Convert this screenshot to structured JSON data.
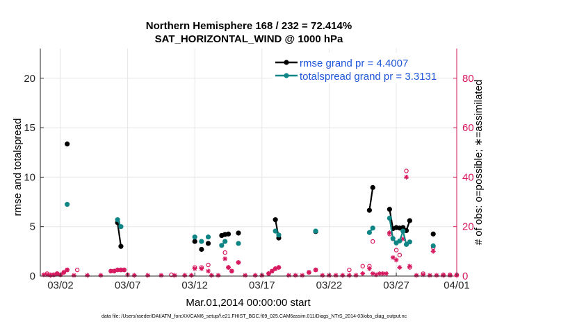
{
  "colors": {
    "rmse": "#000000",
    "spread": "#0f8585",
    "obs": "#d6175e",
    "grid": "#e6e6e6",
    "axis": "#262626"
  },
  "chart_data": {
    "type": "line",
    "title": "Northern Hemisphere 168 / 232 = 72.414%",
    "subtitle": "SAT_HORIZONTAL_WIND @ 1000 hPa",
    "xlabel": "Mar.01,2014 00:00:00 start",
    "ylabel": "rmse and totalspread",
    "y2label": "# of obs: o=possible; ∗=assimilated",
    "footnote": "data file: /Users/raeder/DAI/ATM_forcXX/CAM6_setup/f.e21.FHIST_BGC.f09_025.CAM6assim.011/Diags_NTrS_2014-03/obs_diag_output.nc",
    "xlim": [
      0.5,
      31.5
    ],
    "ylim": [
      0,
      23
    ],
    "y2lim": [
      0,
      92
    ],
    "x_ticks": [
      {
        "value": 2,
        "label": "03/02"
      },
      {
        "value": 7,
        "label": "03/07"
      },
      {
        "value": 12,
        "label": "03/12"
      },
      {
        "value": 17,
        "label": "03/17"
      },
      {
        "value": 22,
        "label": "03/22"
      },
      {
        "value": 27,
        "label": "03/27"
      },
      {
        "value": 32,
        "label": "04/01"
      }
    ],
    "y_ticks": [
      {
        "value": 0,
        "label": "0"
      },
      {
        "value": 5,
        "label": "5"
      },
      {
        "value": 10,
        "label": "10"
      },
      {
        "value": 15,
        "label": "15"
      },
      {
        "value": 20,
        "label": "20"
      }
    ],
    "y2_ticks": [
      {
        "value": 0,
        "label": "0"
      },
      {
        "value": 20,
        "label": "20"
      },
      {
        "value": 40,
        "label": "40"
      },
      {
        "value": 60,
        "label": "60"
      },
      {
        "value": 80,
        "label": "80"
      }
    ],
    "series": [
      {
        "name": "rmse grand pr = 4.4007",
        "axis": "left",
        "segments": [
          [
            [
              2.5,
              13.35
            ]
          ],
          [
            [
              6.25,
              5.4
            ],
            [
              6.5,
              3.0
            ]
          ],
          [
            [
              12.0,
              3.5
            ]
          ],
          [
            [
              12.5,
              2.7
            ]
          ],
          [
            [
              13.0,
              3.3
            ]
          ],
          [
            [
              14.0,
              4.1
            ],
            [
              14.25,
              4.2
            ],
            [
              14.5,
              4.25
            ]
          ],
          [
            [
              15.25,
              4.35
            ]
          ],
          [
            [
              18.0,
              5.7
            ],
            [
              18.25,
              3.85
            ]
          ],
          [
            [
              21.0,
              4.5
            ]
          ],
          [
            [
              25.0,
              6.65
            ],
            [
              25.25,
              8.95
            ]
          ],
          [
            [
              26.5,
              6.75
            ],
            [
              26.75,
              4.8
            ],
            [
              27.0,
              4.9
            ],
            [
              27.25,
              4.85
            ],
            [
              27.5,
              4.9
            ],
            [
              27.75,
              4.6
            ],
            [
              28.0,
              5.6
            ]
          ],
          [
            [
              29.75,
              4.25
            ]
          ]
        ]
      },
      {
        "name": "totalspread grand pr = 3.3131",
        "axis": "left",
        "segments": [
          [
            [
              2.5,
              7.25
            ]
          ],
          [
            [
              6.25,
              5.7
            ],
            [
              6.5,
              5.0
            ]
          ],
          [
            [
              12.0,
              3.95
            ]
          ],
          [
            [
              12.5,
              3.5
            ]
          ],
          [
            [
              13.0,
              3.95
            ]
          ],
          [
            [
              14.0,
              3.1
            ],
            [
              14.25,
              3.5
            ]
          ],
          [
            [
              15.25,
              3.3
            ]
          ],
          [
            [
              18.0,
              4.55
            ],
            [
              18.25,
              4.15
            ]
          ],
          [
            [
              21.0,
              4.55
            ]
          ],
          [
            [
              25.0,
              4.4
            ],
            [
              25.25,
              4.85
            ]
          ],
          [
            [
              26.5,
              5.85
            ],
            [
              26.75,
              3.8
            ],
            [
              27.0,
              3.35
            ],
            [
              27.25,
              3.55
            ],
            [
              27.5,
              4.55
            ],
            [
              27.75,
              3.2
            ],
            [
              28.0,
              3.45
            ]
          ],
          [
            [
              29.75,
              3.05
            ]
          ]
        ]
      }
    ],
    "obs_possible": [
      [
        1,
        1
      ],
      [
        1.25,
        0.5
      ],
      [
        1.5,
        0.5
      ],
      [
        1.75,
        1
      ],
      [
        2,
        0.5
      ],
      [
        2.25,
        1.5
      ],
      [
        2.5,
        2.5
      ],
      [
        3.25,
        2.5
      ],
      [
        5.75,
        2
      ],
      [
        6.0,
        2
      ],
      [
        6.25,
        2.5
      ],
      [
        6.5,
        2.5
      ],
      [
        6.75,
        2.5
      ],
      [
        10.25,
        0.5
      ],
      [
        12.0,
        3.5
      ],
      [
        12.5,
        3.5
      ],
      [
        13.0,
        4.5
      ],
      [
        14.25,
        9.5
      ],
      [
        14.5,
        3.5
      ],
      [
        14.75,
        2
      ],
      [
        15.25,
        5.5
      ],
      [
        17.5,
        1
      ],
      [
        17.75,
        2
      ],
      [
        18.0,
        3
      ],
      [
        18.25,
        3.5
      ],
      [
        20.5,
        1.5
      ],
      [
        21.0,
        2.5
      ],
      [
        23.5,
        2.5
      ],
      [
        24.5,
        4
      ],
      [
        25.0,
        4
      ],
      [
        25.25,
        14
      ],
      [
        26.5,
        17
      ],
      [
        26.75,
        15
      ],
      [
        27.0,
        10.5
      ],
      [
        27.25,
        8.5
      ],
      [
        27.5,
        18
      ],
      [
        27.75,
        42.5
      ],
      [
        28.0,
        3.5
      ],
      [
        29.0,
        1
      ],
      [
        29.75,
        11.5
      ],
      [
        30.5,
        0.5
      ],
      [
        31.0,
        0.5
      ],
      [
        31.5,
        0.5
      ]
    ],
    "obs_assimilated": [
      [
        0.75,
        0.5
      ],
      [
        1,
        0.5
      ],
      [
        1.25,
        0.3
      ],
      [
        1.5,
        0.5
      ],
      [
        1.75,
        1
      ],
      [
        2,
        0.5
      ],
      [
        2.25,
        1.5
      ],
      [
        2.5,
        2.5
      ],
      [
        3.0,
        0.3
      ],
      [
        4.0,
        0.3
      ],
      [
        5.0,
        0.3
      ],
      [
        5.75,
        2
      ],
      [
        6.0,
        2
      ],
      [
        6.25,
        2.5
      ],
      [
        6.5,
        2.5
      ],
      [
        6.75,
        2.5
      ],
      [
        7.0,
        0.5
      ],
      [
        7.5,
        0.3
      ],
      [
        8.5,
        0.3
      ],
      [
        9.5,
        0.3
      ],
      [
        10.5,
        0.3
      ],
      [
        11.25,
        0.3
      ],
      [
        11.75,
        0.3
      ],
      [
        12.0,
        3
      ],
      [
        12.5,
        3
      ],
      [
        13.0,
        2
      ],
      [
        13.25,
        0.3
      ],
      [
        13.75,
        0.3
      ],
      [
        14.25,
        7
      ],
      [
        14.5,
        3.5
      ],
      [
        14.75,
        2
      ],
      [
        15.25,
        5.5
      ],
      [
        15.75,
        0.3
      ],
      [
        16.5,
        0.3
      ],
      [
        17.0,
        0.3
      ],
      [
        17.5,
        1
      ],
      [
        17.75,
        2
      ],
      [
        18.0,
        3
      ],
      [
        18.25,
        3.5
      ],
      [
        19.0,
        0.3
      ],
      [
        19.5,
        0.3
      ],
      [
        20.0,
        0.3
      ],
      [
        20.5,
        1.5
      ],
      [
        21.0,
        2.5
      ],
      [
        21.5,
        0.3
      ],
      [
        22.0,
        0.3
      ],
      [
        22.5,
        0.3
      ],
      [
        23.0,
        0.3
      ],
      [
        23.5,
        0.3
      ],
      [
        24.0,
        0.3
      ],
      [
        24.5,
        1
      ],
      [
        25.0,
        3
      ],
      [
        25.25,
        1
      ],
      [
        25.5,
        0.5
      ],
      [
        25.75,
        1
      ],
      [
        26.0,
        1
      ],
      [
        26.25,
        1
      ],
      [
        26.5,
        17.5
      ],
      [
        26.75,
        7.5
      ],
      [
        27.0,
        6.5
      ],
      [
        27.25,
        3.5
      ],
      [
        27.5,
        15
      ],
      [
        27.75,
        40
      ],
      [
        28.0,
        4
      ],
      [
        28.5,
        0.3
      ],
      [
        29.0,
        0.5
      ],
      [
        29.5,
        0.3
      ],
      [
        29.75,
        10
      ],
      [
        30.0,
        0.3
      ],
      [
        30.5,
        0.3
      ],
      [
        31.0,
        0.3
      ],
      [
        31.5,
        0.3
      ]
    ]
  }
}
